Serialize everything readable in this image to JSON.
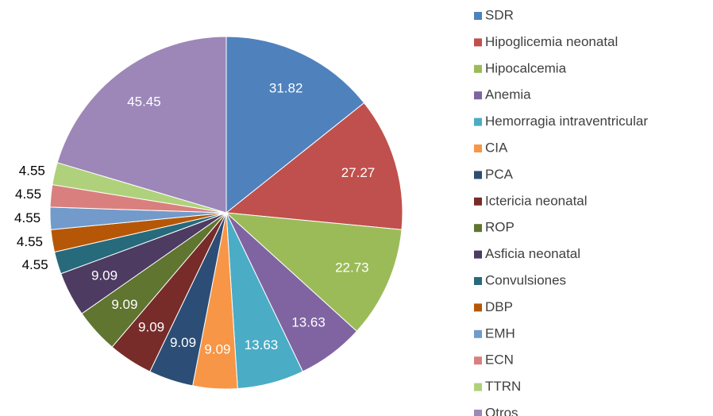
{
  "chart_data": {
    "type": "pie",
    "categories": [
      "SDR",
      "Hipoglicemia neonatal",
      "Hipocalcemia",
      "Anemia",
      "Hemorragia intraventricular",
      "CIA",
      "PCA",
      "Ictericia neonatal",
      "ROP",
      "Asficia neonatal",
      "Convulsiones",
      "DBP",
      "EMH",
      "ECN",
      "TTRN",
      "Otros"
    ],
    "values": [
      31.82,
      27.27,
      22.73,
      13.63,
      13.63,
      9.09,
      9.09,
      9.09,
      9.09,
      9.09,
      4.55,
      4.55,
      4.55,
      4.55,
      4.55,
      45.45
    ],
    "colors": [
      "#4f81bd",
      "#c0504d",
      "#9bbb59",
      "#8064a2",
      "#4bacc6",
      "#f79646",
      "#2c4d75",
      "#772c2a",
      "#5f7530",
      "#4d3b62",
      "#276a7c",
      "#b65708",
      "#729aca",
      "#d9807e",
      "#afd17c",
      "#9c87b8"
    ],
    "legend": "right"
  }
}
